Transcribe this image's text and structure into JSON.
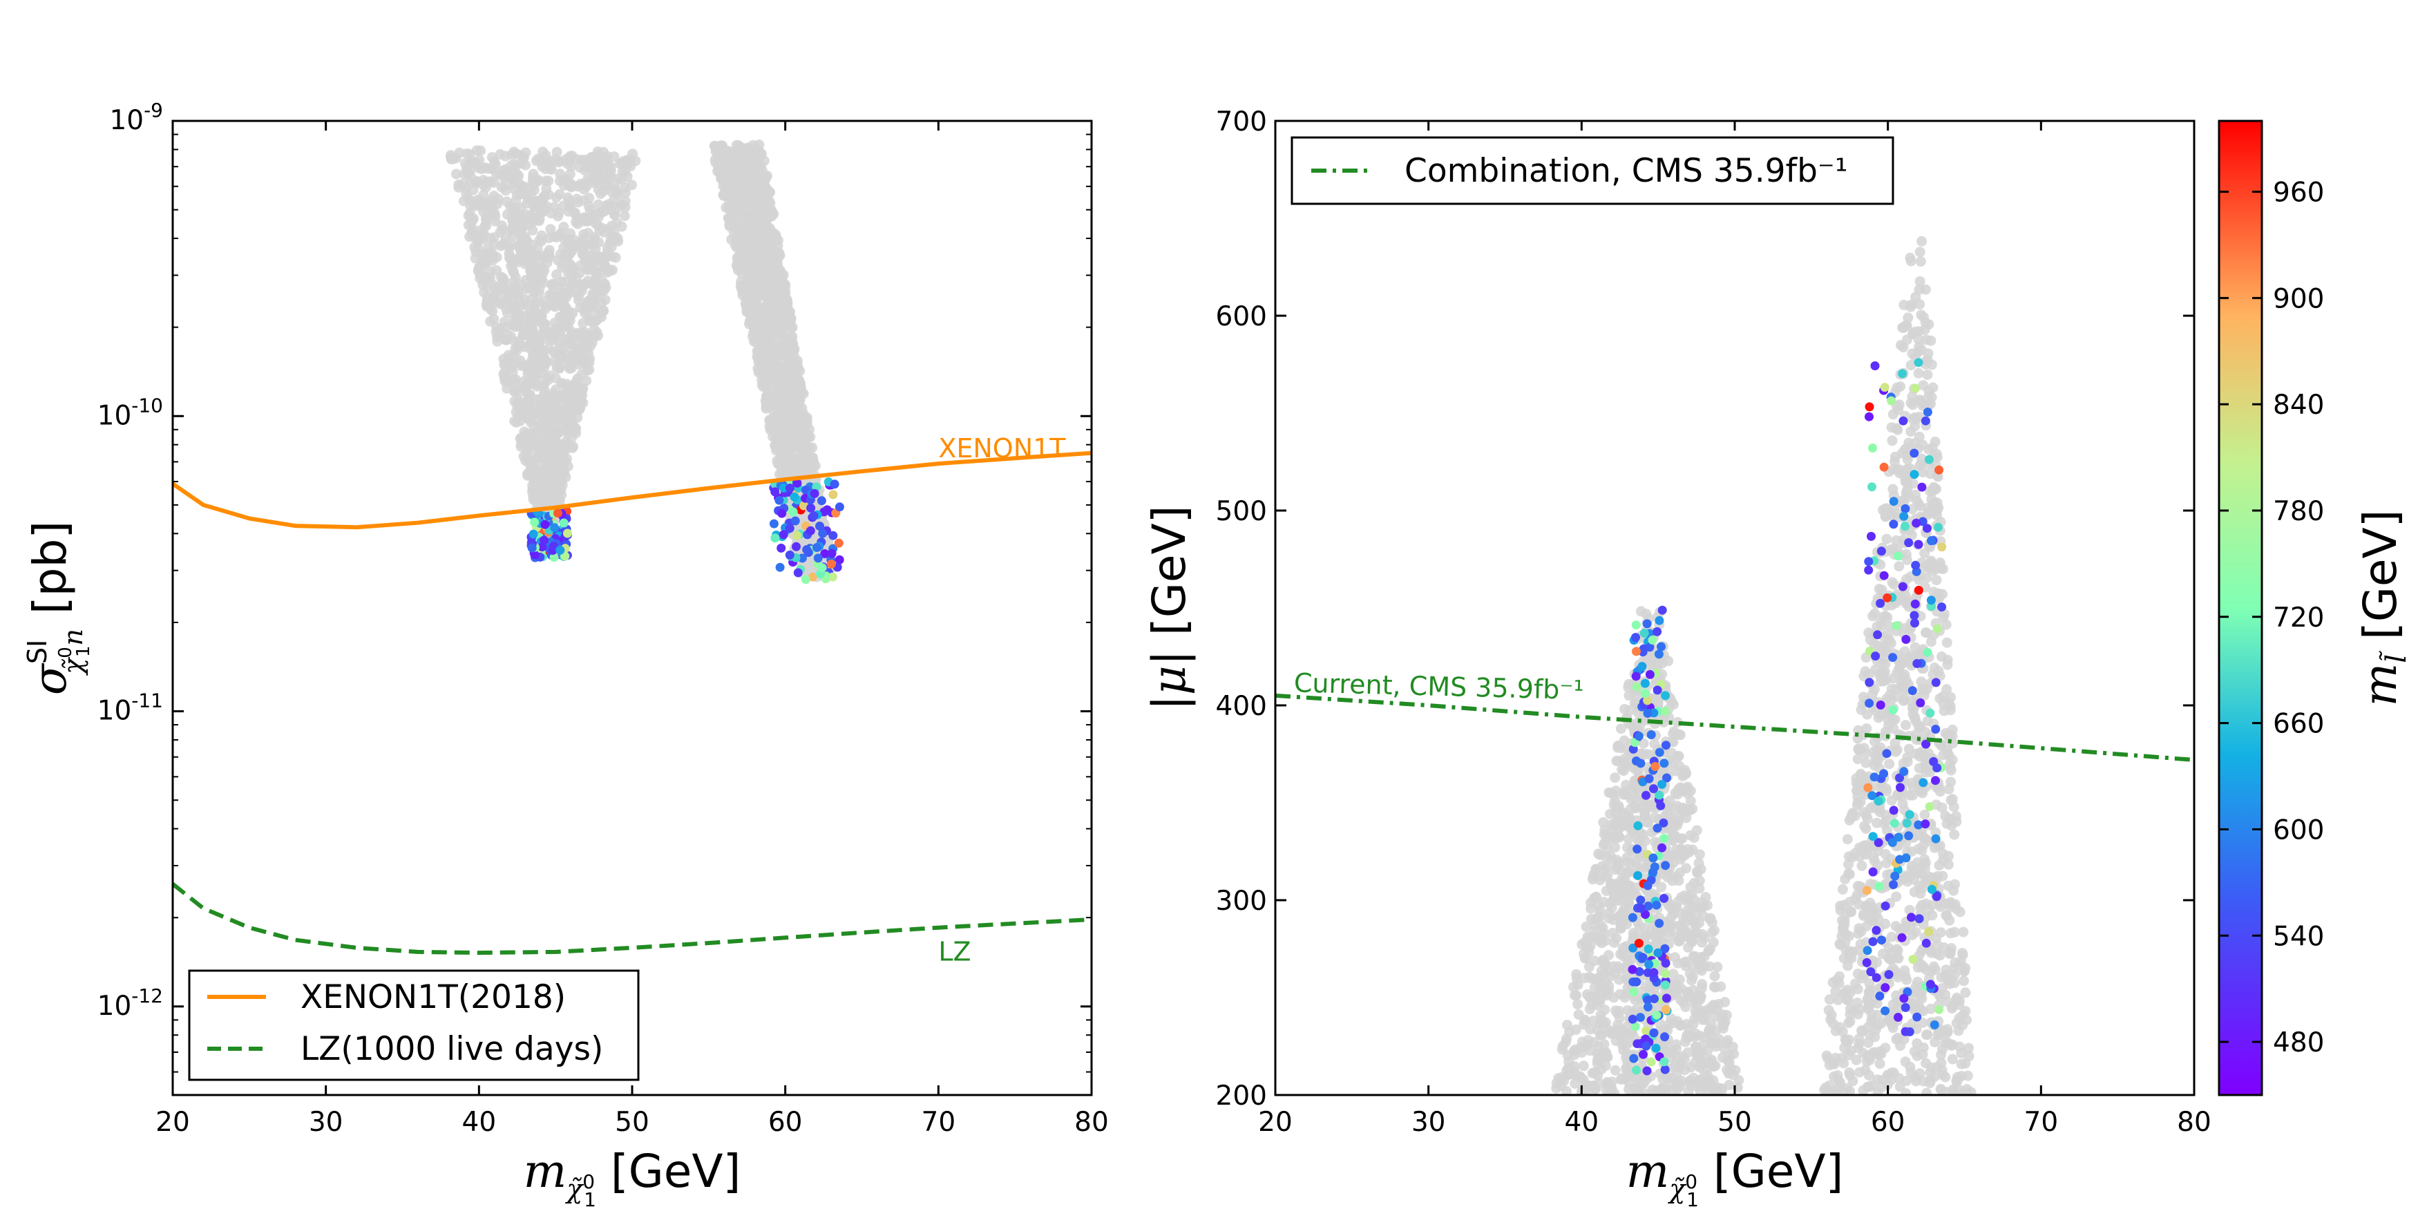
{
  "chart_data": [
    {
      "type": "scatter",
      "panel": "left",
      "xlabel": "m_{χ̃₁⁰} [GeV]",
      "ylabel": "σ^{SI}_{χ̃₁⁰n} [pb]",
      "xlim": [
        20,
        80
      ],
      "ylim_log10": [
        -12.3,
        -9
      ],
      "yscale": "log",
      "x_ticks": [
        "20",
        "30",
        "40",
        "50",
        "60",
        "70",
        "80"
      ],
      "y_ticks": [
        {
          "base": "10",
          "exp": "-9"
        },
        {
          "base": "10",
          "exp": "-10"
        },
        {
          "base": "10",
          "exp": "-11"
        },
        {
          "base": "10",
          "exp": "-12"
        }
      ],
      "lines": [
        {
          "name": "XENON1T(2018)",
          "label": "XENON1T",
          "color": "#ff8c00",
          "style": "solid",
          "x": [
            20,
            22,
            25,
            28,
            32,
            36,
            40,
            45,
            50,
            55,
            60,
            65,
            70,
            75,
            80
          ],
          "y": [
            5.9e-11,
            5e-11,
            4.5e-11,
            4.25e-11,
            4.2e-11,
            4.35e-11,
            4.6e-11,
            4.9e-11,
            5.3e-11,
            5.7e-11,
            6.1e-11,
            6.5e-11,
            6.9e-11,
            7.2e-11,
            7.5e-11
          ]
        },
        {
          "name": "LZ(1000 live days)",
          "label": "LZ",
          "color": "#228b22",
          "style": "dashed",
          "x": [
            20,
            22,
            25,
            28,
            32,
            36,
            40,
            45,
            50,
            55,
            60,
            65,
            70,
            75,
            80
          ],
          "y": [
            2.6e-12,
            2.15e-12,
            1.85e-12,
            1.68e-12,
            1.58e-12,
            1.53e-12,
            1.52e-12,
            1.53e-12,
            1.58e-12,
            1.64e-12,
            1.71e-12,
            1.78e-12,
            1.85e-12,
            1.91e-12,
            1.97e-12
          ]
        }
      ],
      "clusters": [
        {
          "kind": "grey-band",
          "x_top": [
            38,
            50.5
          ],
          "x_bottom": [
            44.2,
            44.8
          ],
          "log_top": -9.1,
          "log_bottom": -10.42
        },
        {
          "kind": "grey-band",
          "x_top": [
            55.2,
            58.5
          ],
          "x_bottom": [
            61,
            63.2
          ],
          "log_top": -9.08,
          "log_bottom": -10.55
        },
        {
          "kind": "colored",
          "x_range": [
            43.4,
            45.8
          ],
          "log_range": [
            -10.48,
            -10.32
          ]
        },
        {
          "kind": "colored",
          "x_range": [
            59.2,
            63.6
          ],
          "log_range": [
            -10.56,
            -10.22
          ]
        }
      ],
      "legend": {
        "position": "lower left",
        "entries": [
          "XENON1T(2018)",
          "LZ(1000 live days)"
        ]
      }
    },
    {
      "type": "scatter",
      "panel": "right",
      "xlabel": "m_{χ̃₁⁰} [GeV]",
      "ylabel": "|μ| [GeV]",
      "xlim": [
        20,
        80
      ],
      "ylim": [
        200,
        700
      ],
      "x_ticks": [
        "20",
        "30",
        "40",
        "50",
        "60",
        "70",
        "80"
      ],
      "y_ticks": [
        "200",
        "300",
        "400",
        "500",
        "600",
        "700"
      ],
      "lines": [
        {
          "name": "Combination, CMS 35.9fb⁻¹",
          "label": "Current, CMS 35.9fb⁻¹",
          "color": "#228b22",
          "style": "dashdot",
          "x": [
            20,
            30,
            40,
            50,
            60,
            70,
            80
          ],
          "y": [
            405,
            400,
            394,
            389,
            384,
            378,
            372
          ]
        }
      ],
      "clusters": [
        {
          "kind": "grey-band",
          "x_top": [
            44,
            45
          ],
          "x_bottom": [
            38.2,
            50.5
          ],
          "y_top": 455,
          "y_bottom": 200
        },
        {
          "kind": "grey-band",
          "x_top": [
            61.5,
            62.5
          ],
          "x_bottom": [
            55.5,
            65.5
          ],
          "y_top": 640,
          "y_bottom": 200
        },
        {
          "kind": "colored",
          "x_range": [
            43.3,
            45.6
          ],
          "y_range": [
            210,
            450
          ]
        },
        {
          "kind": "colored",
          "x_range": [
            58.5,
            63.6
          ],
          "y_range": [
            230,
            580
          ]
        }
      ],
      "legend": {
        "position": "upper left",
        "entries": [
          "Combination, CMS 35.9fb⁻¹"
        ]
      },
      "colorbar": {
        "label": "m_l̃ [GeV]",
        "range": [
          450,
          1000
        ],
        "ticks": [
          "480",
          "540",
          "600",
          "660",
          "720",
          "780",
          "840",
          "900",
          "960"
        ],
        "colormap": "rainbow"
      }
    }
  ]
}
